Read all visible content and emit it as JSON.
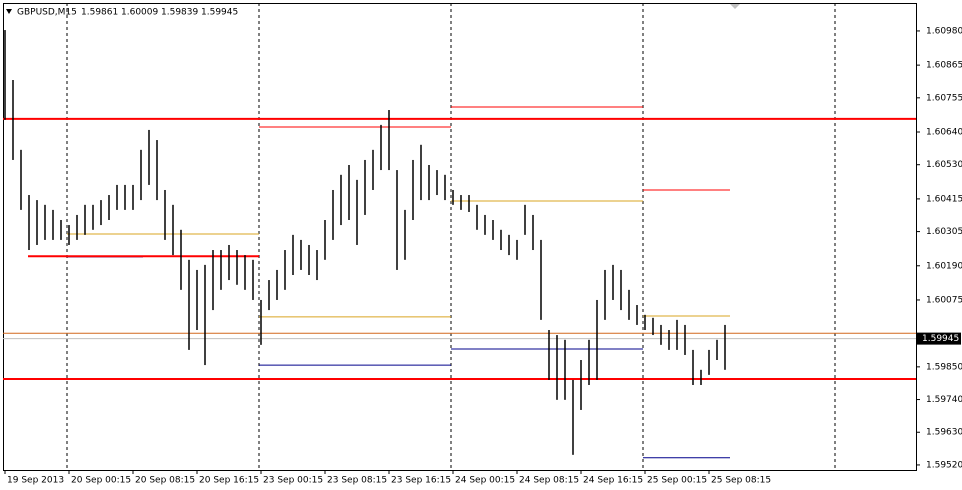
{
  "chart_data": {
    "type": "ohlc",
    "header": {
      "symbol": "GBPUSD,M15",
      "values": [
        1.59861,
        1.60009,
        1.59839,
        1.59945
      ]
    },
    "highs": [
      1.60983,
      1.60815,
      1.6058,
      1.60428,
      1.60411,
      1.60395,
      1.60378,
      1.60344,
      1.60327,
      1.60361,
      1.60395,
      1.60395,
      1.60411,
      1.60428,
      1.60462,
      1.60462,
      1.60462,
      1.6058,
      1.60647,
      1.60613,
      1.60445,
      1.60395,
      1.60311,
      1.6021,
      1.60176,
      1.60193,
      1.60243,
      1.60243,
      1.6026,
      1.60243,
      1.60226,
      1.6021,
      1.60075,
      1.60142,
      1.60176,
      1.60243,
      1.60294,
      1.60277,
      1.6026,
      1.60243,
      1.60344,
      1.60445,
      1.60496,
      1.60529,
      1.60479,
      1.60546,
      1.6058,
      1.60664,
      1.60714,
      1.60512,
      1.60378,
      1.60546,
      1.60597,
      1.60529,
      1.60512,
      1.60496,
      1.60445,
      1.60428,
      1.60428,
      1.60395,
      1.60361,
      1.60344,
      1.60311,
      1.60294,
      1.60277,
      1.60395,
      1.60361,
      1.60277,
      1.59974,
      1.59957,
      1.59941,
      1.59806,
      1.59873,
      1.59941,
      1.60075,
      1.60176,
      1.60193,
      1.60176,
      1.60109,
      1.60058,
      1.60025,
      1.60015,
      1.59991,
      1.59974,
      1.60008,
      1.59991,
      1.59907,
      1.5984,
      1.59907,
      1.59941,
      1.59991
    ],
    "lows": [
      1.60681,
      1.60546,
      1.60378,
      1.60243,
      1.6026,
      1.60277,
      1.60277,
      1.60277,
      1.6026,
      1.60277,
      1.60294,
      1.60311,
      1.60327,
      1.60344,
      1.60378,
      1.60378,
      1.60378,
      1.60411,
      1.60462,
      1.60411,
      1.60277,
      1.60226,
      1.60109,
      1.59907,
      1.59974,
      1.59856,
      1.60041,
      1.60109,
      1.60142,
      1.60126,
      1.60109,
      1.60075,
      1.59924,
      1.60041,
      1.60075,
      1.60109,
      1.60159,
      1.60176,
      1.60159,
      1.60142,
      1.6021,
      1.60277,
      1.60327,
      1.60344,
      1.6026,
      1.60361,
      1.60445,
      1.60512,
      1.60512,
      1.60176,
      1.6021,
      1.60344,
      1.60411,
      1.60411,
      1.60428,
      1.60411,
      1.60395,
      1.60378,
      1.60371,
      1.60311,
      1.60294,
      1.60277,
      1.60243,
      1.60226,
      1.6021,
      1.60294,
      1.60243,
      1.60008,
      1.59806,
      1.59739,
      1.59739,
      1.59554,
      1.59705,
      1.59789,
      1.59806,
      1.60008,
      1.60075,
      1.60041,
      1.60008,
      1.59991,
      1.59974,
      1.59957,
      1.59924,
      1.59907,
      1.59907,
      1.5989,
      1.59789,
      1.59789,
      1.59823,
      1.59873,
      1.5984
    ],
    "xlim": [
      -0.25,
      113.875
    ],
    "ylim": [
      1.59503,
      1.61074
    ],
    "yticks": [
      {
        "value": 1.6098,
        "label": "1.60980"
      },
      1.60865,
      1.60755,
      {
        "value": 1.6064,
        "label": "1.60640"
      },
      {
        "value": 1.6053,
        "label": "1.60530"
      },
      1.60415,
      1.60305,
      {
        "value": 1.6019,
        "label": "1.60190"
      },
      1.60075,
      {
        "value": 1.5985,
        "label": "1.59850"
      },
      {
        "value": 1.5974,
        "label": "1.59740"
      },
      {
        "value": 1.5963,
        "label": "1.59630"
      },
      {
        "value": 1.5952,
        "label": "1.59520"
      }
    ],
    "xticks": [
      {
        "value": 0,
        "label": "19 Sep 2013"
      },
      {
        "value": 8,
        "label": "20 Sep 00:15"
      },
      {
        "value": 16,
        "label": "20 Sep 08:15"
      },
      {
        "value": 24,
        "label": "20 Sep 16:15"
      },
      {
        "value": 32,
        "label": "23 Sep 00:15"
      },
      {
        "value": 40,
        "label": "23 Sep 08:15"
      },
      {
        "value": 48,
        "label": "23 Sep 16:15"
      },
      {
        "value": 56,
        "label": "24 Sep 00:15"
      },
      {
        "value": 64,
        "label": "24 Sep 08:15"
      },
      {
        "value": 72,
        "label": "24 Sep 16:15"
      },
      {
        "value": 80,
        "label": "25 Sep 00:15"
      },
      {
        "value": 88,
        "label": "25 Sep 08:15"
      }
    ],
    "separators": [
      7.75,
      31.75,
      55.75,
      79.75,
      103.75
    ],
    "levels": [
      {
        "value": 1.60684,
        "color": "#ff0000"
      },
      {
        "value": 1.59809,
        "color": "#ff0000"
      },
      {
        "value": 1.59963,
        "color": "#d2691e"
      },
      {
        "value": 1.59945,
        "color": "#c0c0c0"
      }
    ],
    "current_price": 1.59945,
    "steps": [
      {
        "color": "#ff0000",
        "segments": [
          [
            31.75,
            55.75,
            1.60657
          ],
          [
            55.75,
            79.75,
            1.60724
          ],
          [
            79.75,
            90.625,
            1.60445
          ]
        ]
      },
      {
        "color": "#daa520",
        "segments": [
          [
            7.75,
            31.75,
            1.60297
          ],
          [
            31.75,
            55.75,
            1.60018
          ],
          [
            55.75,
            79.75,
            1.60408
          ],
          [
            79.75,
            90.625,
            1.60021
          ]
        ]
      },
      {
        "color": "#00008b",
        "segments": [
          [
            7.75,
            17.25,
            1.6022
          ],
          [
            31.75,
            55.75,
            1.59856
          ],
          [
            55.75,
            79.75,
            1.5991
          ],
          [
            79.75,
            90.625,
            1.59544
          ]
        ]
      },
      {
        "color": "#ff0000",
        "segments": [
          [
            2.875,
            31.75,
            1.60222
          ]
        ]
      }
    ]
  }
}
